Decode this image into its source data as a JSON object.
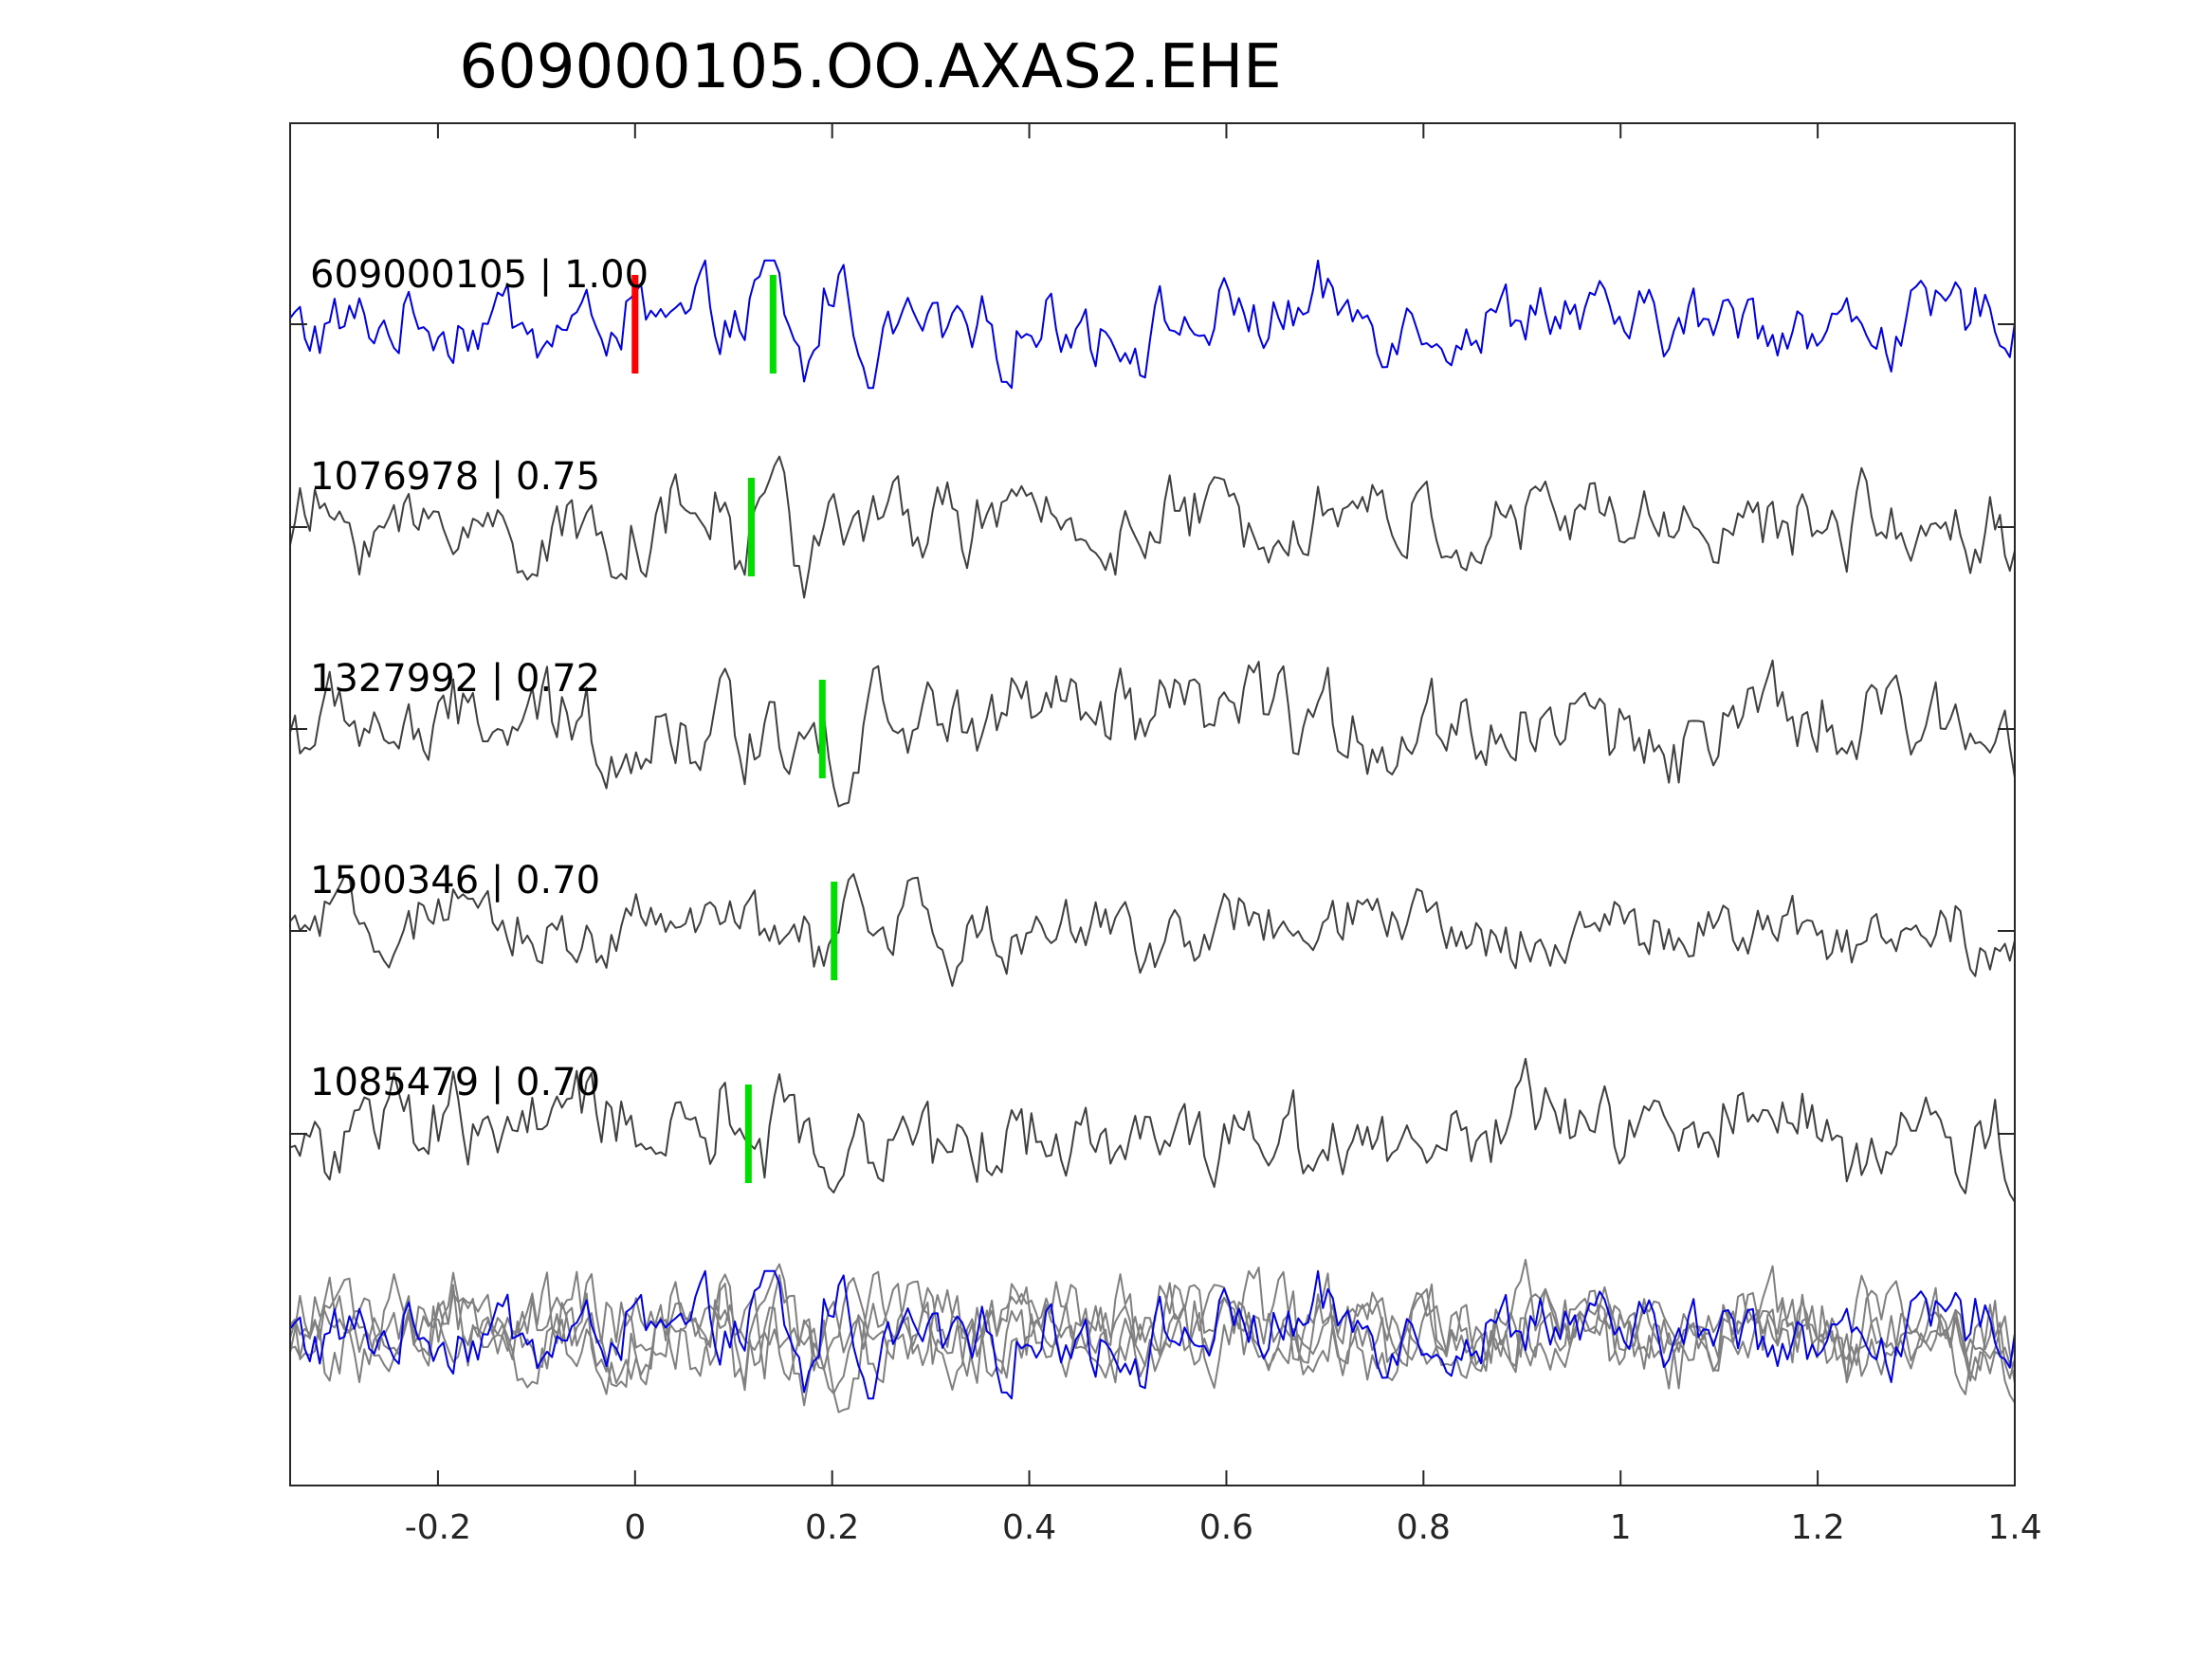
{
  "chart_data": {
    "type": "line",
    "title": "609000105.OO.AXAS2.EHE",
    "xlabel": "",
    "ylabel": "",
    "xlim": [
      -0.35,
      1.4
    ],
    "x_ticks": [
      -0.2,
      0,
      0.2,
      0.4,
      0.6,
      0.8,
      1,
      1.2,
      1.4
    ],
    "x_tick_labels": [
      "-0.2",
      "0",
      "0.2",
      "0.4",
      "0.6",
      "0.8",
      "1",
      "1.2",
      "1.4"
    ],
    "grid": false,
    "legend": "none",
    "colors": {
      "master": "#0000e6",
      "neighbor": "#404040",
      "overlay_neighbor": "#808080",
      "reference_pick": "#ff0000",
      "pick": "#00dd00",
      "axes": "#262626"
    },
    "series": [
      {
        "label": "609000105 | 1.00",
        "id": "609000105",
        "cc": 1.0,
        "color": "master",
        "picks": [
          {
            "time": 0.0,
            "kind": "reference_pick"
          },
          {
            "time": 0.14,
            "kind": "pick"
          }
        ]
      },
      {
        "label": "1076978 | 0.75",
        "id": "1076978",
        "cc": 0.75,
        "color": "neighbor",
        "picks": [
          {
            "time": 0.118,
            "kind": "pick"
          }
        ]
      },
      {
        "label": "1327992 | 0.72",
        "id": "1327992",
        "cc": 0.72,
        "color": "neighbor",
        "picks": [
          {
            "time": 0.19,
            "kind": "pick"
          }
        ]
      },
      {
        "label": "1500346 | 0.70",
        "id": "1500346",
        "cc": 0.7,
        "color": "neighbor",
        "picks": [
          {
            "time": 0.202,
            "kind": "pick"
          }
        ]
      },
      {
        "label": "1085479 | 0.70",
        "id": "1085479",
        "cc": 0.7,
        "color": "neighbor",
        "picks": [
          {
            "time": 0.115,
            "kind": "pick"
          }
        ]
      }
    ],
    "overlay": {
      "description_visible": false
    }
  }
}
